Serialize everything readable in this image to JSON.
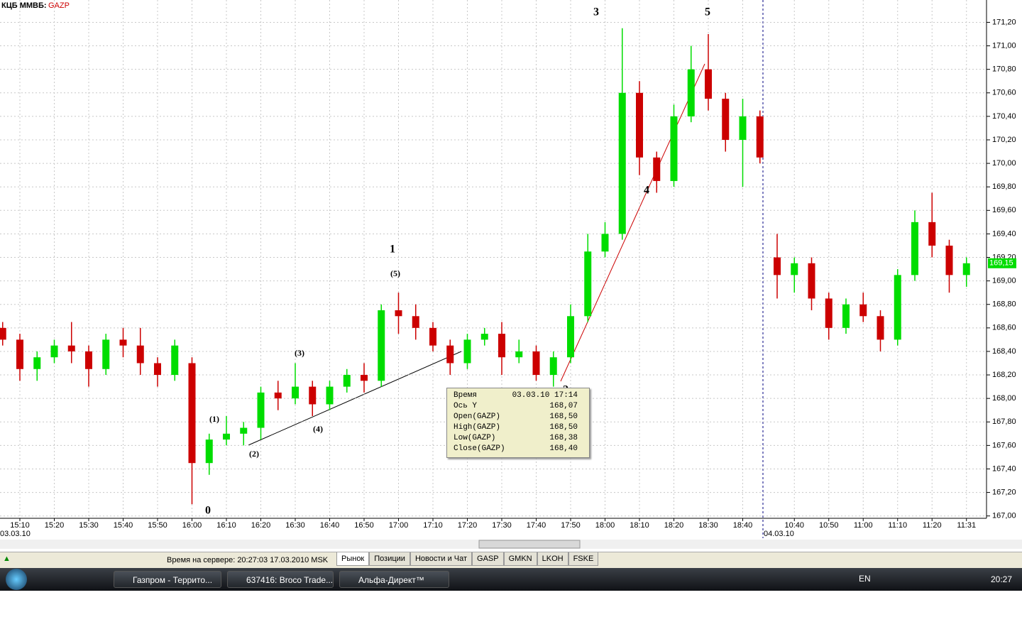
{
  "header": {
    "exchange": "КЦБ ММВБ:",
    "ticker": "GAZP"
  },
  "chart_data": {
    "type": "candlestick",
    "categories": [
      null,
      "15:10",
      null,
      "15:20",
      null,
      "15:30",
      null,
      "15:40",
      null,
      "15:50",
      null,
      "16:00",
      null,
      "16:10",
      null,
      "16:20",
      null,
      "16:30",
      null,
      "16:40",
      null,
      "16:50",
      null,
      "17:00",
      null,
      "17:10",
      null,
      "17:20",
      null,
      "17:30",
      null,
      "17:40",
      null,
      "17:50",
      null,
      "18:00",
      null,
      "18:10",
      null,
      "18:20",
      null,
      "18:30",
      null,
      "18:40",
      null,
      null,
      "10:40",
      null,
      "10:50",
      null,
      "11:00",
      null,
      "11:10",
      null,
      "11:20",
      null,
      "11:31"
    ],
    "open": [
      168.6,
      168.5,
      168.25,
      168.35,
      168.45,
      168.4,
      168.25,
      168.5,
      168.45,
      168.3,
      168.2,
      168.3,
      167.45,
      167.65,
      167.7,
      167.75,
      168.05,
      168.0,
      168.1,
      167.95,
      168.1,
      168.2,
      168.15,
      168.75,
      168.7,
      168.6,
      168.45,
      168.3,
      168.5,
      168.55,
      168.35,
      168.4,
      168.2,
      168.35,
      168.7,
      169.25,
      169.4,
      170.6,
      170.05,
      169.85,
      170.4,
      170.8,
      170.55,
      170.2,
      170.4,
      169.2,
      169.05,
      169.15,
      168.85,
      168.6,
      168.8,
      168.7,
      168.5,
      169.05,
      169.5,
      169.3,
      169.05
    ],
    "high": [
      168.65,
      168.55,
      168.4,
      168.5,
      168.65,
      168.45,
      168.55,
      168.6,
      168.6,
      168.35,
      168.5,
      168.35,
      167.7,
      167.85,
      167.8,
      168.1,
      168.15,
      168.3,
      168.15,
      168.15,
      168.25,
      168.3,
      168.8,
      168.9,
      168.8,
      168.65,
      168.5,
      168.55,
      168.6,
      168.65,
      168.5,
      168.45,
      168.4,
      168.8,
      169.4,
      169.5,
      171.15,
      170.7,
      170.1,
      170.5,
      171.0,
      171.1,
      170.6,
      170.55,
      170.45,
      169.4,
      169.2,
      169.2,
      168.9,
      168.85,
      168.9,
      168.75,
      169.1,
      169.6,
      169.75,
      169.35,
      169.2
    ],
    "low": [
      168.45,
      168.15,
      168.15,
      168.3,
      168.3,
      168.1,
      168.2,
      168.35,
      168.2,
      168.1,
      168.15,
      167.1,
      167.35,
      167.6,
      167.6,
      167.65,
      167.9,
      167.95,
      167.85,
      167.9,
      168.05,
      168.05,
      168.1,
      168.55,
      168.5,
      168.4,
      168.2,
      168.25,
      168.45,
      168.2,
      168.3,
      168.15,
      168.1,
      168.3,
      168.65,
      169.2,
      169.35,
      169.9,
      169.75,
      169.8,
      170.35,
      170.45,
      170.1,
      169.8,
      170.0,
      168.85,
      168.9,
      168.75,
      168.5,
      168.55,
      168.65,
      168.4,
      168.45,
      169.0,
      169.2,
      168.9,
      168.95
    ],
    "close": [
      168.5,
      168.25,
      168.35,
      168.45,
      168.4,
      168.25,
      168.5,
      168.45,
      168.3,
      168.2,
      168.45,
      167.45,
      167.65,
      167.7,
      167.75,
      168.05,
      168.0,
      168.1,
      167.95,
      168.1,
      168.2,
      168.15,
      168.75,
      168.7,
      168.6,
      168.45,
      168.3,
      168.5,
      168.55,
      168.35,
      168.4,
      168.2,
      168.35,
      168.7,
      169.25,
      169.4,
      170.6,
      170.05,
      169.85,
      170.4,
      170.8,
      170.55,
      170.2,
      170.4,
      170.05,
      169.05,
      169.15,
      168.85,
      168.6,
      168.8,
      168.7,
      168.5,
      169.05,
      169.5,
      169.3,
      169.05,
      169.15
    ],
    "up_color": "#00dd00",
    "down_color": "#cc0000",
    "ylim": [
      166.98,
      171.39
    ],
    "yticks": [
      {
        "value": 167.0,
        "label": "167,00"
      },
      {
        "value": 167.2,
        "label": "167,20"
      },
      {
        "value": 167.4,
        "label": "167,40"
      },
      {
        "value": 167.6,
        "label": "167,60"
      },
      {
        "value": 167.8,
        "label": "167,80"
      },
      {
        "value": 168.0,
        "label": "168,00"
      },
      {
        "value": 168.2,
        "label": "168,20"
      },
      {
        "value": 168.4,
        "label": "168,40"
      },
      {
        "value": 168.6,
        "label": "168,60"
      },
      {
        "value": 168.8,
        "label": "168,80"
      },
      {
        "value": 169.0,
        "label": "169,00"
      },
      {
        "value": 169.2,
        "label": "169,20"
      },
      {
        "value": 169.4,
        "label": "169,40"
      },
      {
        "value": 169.6,
        "label": "169,60"
      },
      {
        "value": 169.8,
        "label": "169,80"
      },
      {
        "value": 170.0,
        "label": "170,00"
      },
      {
        "value": 170.2,
        "label": "170,20"
      },
      {
        "value": 170.4,
        "label": "170,40"
      },
      {
        "value": 170.6,
        "label": "170,60"
      },
      {
        "value": 170.8,
        "label": "170,80"
      },
      {
        "value": 171.0,
        "label": "171,00"
      },
      {
        "value": 171.2,
        "label": "171,20"
      }
    ],
    "grid": true,
    "dates": [
      "03.03.10",
      "04.03.10"
    ],
    "annotations": [
      "0",
      "1",
      "2",
      "3",
      "4",
      "5",
      "(1)",
      "(2)",
      "(3)",
      "(4)",
      "(5)"
    ],
    "last_price": {
      "value": 169.15,
      "label": "169,15"
    }
  },
  "tooltip": {
    "rows": [
      [
        "Время",
        "03.03.10 17:14"
      ],
      [
        "Ось Y",
        "168,07"
      ],
      [
        "Open(GAZP)",
        "168,50"
      ],
      [
        "High(GAZP)",
        "168,50"
      ],
      [
        "Low(GAZP)",
        "168,38"
      ],
      [
        "Close(GAZP)",
        "168,40"
      ]
    ]
  },
  "status_bar": {
    "server_time": "Время на сервере: 20:27:03 17.03.2010 MSK",
    "tabs": [
      "Рынок",
      "Позиции",
      "Новости и Чат",
      "GASP",
      "GMKN",
      "LKOH",
      "FSKE"
    ]
  },
  "taskbar": {
    "windows": [
      "Газпром - Террито...",
      "637416: Broco Trade...",
      "Альфа-Директ™"
    ],
    "language": "EN",
    "clock": "20:27"
  }
}
